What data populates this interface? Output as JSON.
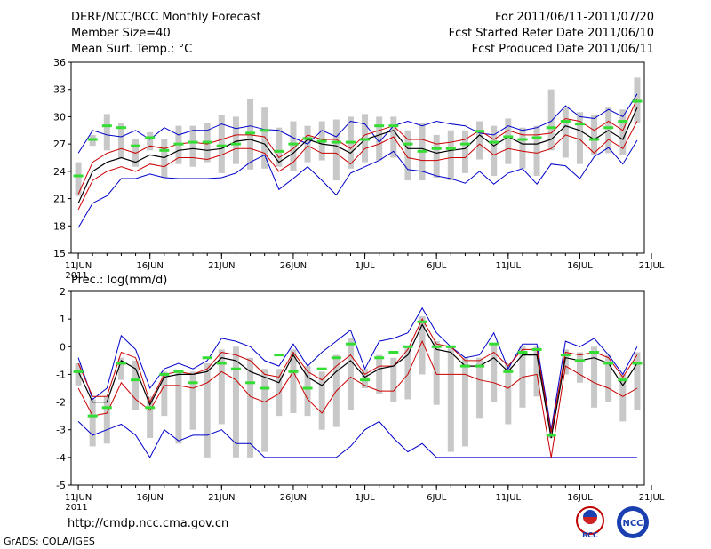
{
  "header": {
    "title": "DERF/NCC/BCC Monthly Forecast",
    "member_size": "Member Size=40",
    "variable1": "Mean Surf. Temp.: °C",
    "period": "For 2011/06/11-2011/07/20",
    "started": "Fcst Started Refer Date 2011/06/10",
    "produced": "Fcst Produced Date 2011/06/11"
  },
  "footer": {
    "url": "http://cmdp.ncc.cma.gov.cn",
    "grads": "GrADS: COLA/IGES",
    "logo1_text": "BCC",
    "logo2_text": "NCC"
  },
  "colors": {
    "max_min": "#0000cc",
    "spread": "#cc0000",
    "mean": "#000000",
    "bar": "#c8c8c8",
    "median": "#33dd33"
  },
  "chart_data": [
    {
      "type": "line",
      "title": "Mean Surf. Temp.: °C",
      "x_tick_labels": [
        "11JUN",
        "16JUN",
        "21JUN",
        "26JUN",
        "1JUL",
        "6JUL",
        "11JUL",
        "16JUL",
        "21JUL"
      ],
      "year_label": "2011",
      "ylim": [
        15,
        36
      ],
      "y_ticks": [
        15,
        18,
        21,
        24,
        27,
        30,
        33,
        36
      ],
      "max": [
        26.0,
        28.5,
        28.0,
        27.8,
        28.5,
        27.5,
        28.8,
        28.0,
        28.5,
        28.5,
        29.2,
        28.7,
        29.0,
        28.6,
        28.5,
        27.7,
        27.0,
        28.5,
        27.8,
        29.5,
        29.2,
        27.2,
        29.0,
        29.5,
        29.0,
        29.5,
        29.2,
        29.0,
        28.2,
        28.0,
        29.0,
        28.5,
        28.8,
        29.5,
        31.2,
        30.0,
        29.8,
        30.8,
        30.0,
        32.5
      ],
      "upper": [
        21.5,
        25.0,
        26.0,
        26.5,
        26.0,
        26.8,
        26.5,
        27.0,
        27.2,
        27.0,
        27.5,
        28.0,
        28.0,
        27.8,
        25.5,
        26.5,
        28.0,
        27.5,
        27.5,
        26.5,
        28.0,
        28.5,
        29.0,
        27.5,
        27.5,
        27.0,
        27.2,
        27.5,
        28.5,
        27.5,
        28.5,
        28.0,
        28.0,
        28.2,
        29.8,
        29.5,
        28.5,
        29.5,
        28.5,
        32.0
      ],
      "mean": [
        20.5,
        24.0,
        25.0,
        25.5,
        25.0,
        25.8,
        25.5,
        26.3,
        26.5,
        26.3,
        26.5,
        27.3,
        27.5,
        27.0,
        25.0,
        26.0,
        27.5,
        27.0,
        26.8,
        26.0,
        27.5,
        28.0,
        28.5,
        26.5,
        26.5,
        26.0,
        26.3,
        26.5,
        28.0,
        26.8,
        27.8,
        27.0,
        27.0,
        27.5,
        29.0,
        28.5,
        27.5,
        28.5,
        27.5,
        31.0
      ],
      "lower": [
        19.8,
        23.0,
        24.0,
        24.5,
        24.0,
        24.8,
        24.5,
        25.5,
        25.5,
        25.3,
        25.8,
        26.5,
        26.5,
        26.0,
        24.0,
        25.0,
        26.8,
        26.0,
        26.0,
        24.8,
        26.5,
        27.0,
        27.8,
        25.5,
        25.2,
        25.2,
        25.5,
        25.5,
        27.0,
        25.8,
        26.5,
        26.2,
        26.0,
        26.5,
        28.0,
        27.5,
        26.0,
        27.5,
        26.5,
        29.5
      ],
      "min": [
        17.8,
        20.5,
        21.3,
        23.2,
        23.2,
        23.7,
        23.3,
        23.2,
        23.2,
        23.2,
        23.3,
        23.8,
        25.0,
        25.8,
        22.0,
        23.2,
        24.5,
        23.0,
        21.4,
        23.8,
        24.5,
        25.2,
        26.2,
        24.2,
        24.0,
        23.5,
        23.2,
        22.7,
        24.0,
        22.6,
        23.8,
        24.3,
        22.6,
        24.8,
        24.6,
        23.2,
        25.6,
        26.6,
        24.8,
        27.4
      ],
      "bar_low": [
        21.3,
        26.8,
        26.3,
        25.5,
        24.5,
        26.3,
        23.3,
        24.8,
        24.5,
        25.0,
        23.8,
        24.8,
        24.2,
        24.3,
        24.5,
        24.0,
        25.0,
        25.2,
        23.0,
        24.3,
        25.0,
        25.2,
        25.5,
        23.0,
        23.0,
        23.3,
        23.0,
        23.8,
        25.3,
        23.5,
        24.8,
        24.3,
        23.5,
        26.3,
        25.5,
        24.8,
        25.8,
        26.0,
        25.8,
        29.3
      ],
      "bar_high": [
        25.0,
        28.0,
        30.3,
        29.3,
        27.5,
        28.3,
        27.5,
        29.0,
        29.0,
        29.3,
        30.2,
        30.0,
        32.0,
        31.0,
        28.8,
        29.5,
        29.0,
        29.5,
        29.7,
        30.0,
        30.3,
        30.0,
        30.0,
        28.5,
        29.3,
        28.0,
        28.5,
        28.5,
        29.5,
        29.0,
        29.8,
        28.8,
        29.0,
        33.0,
        31.0,
        30.5,
        30.2,
        31.0,
        30.8,
        34.3
      ],
      "median": [
        23.5,
        27.5,
        29.0,
        28.8,
        26.8,
        27.7,
        26.3,
        27.0,
        27.2,
        27.2,
        26.8,
        27.0,
        28.2,
        28.5,
        26.2,
        27.0,
        27.6,
        27.3,
        27.2,
        27.2,
        27.5,
        29.0,
        29.0,
        27.0,
        26.2,
        26.5,
        26.5,
        27.0,
        28.4,
        27.2,
        27.8,
        27.5,
        27.7,
        28.8,
        29.5,
        29.2,
        27.5,
        28.8,
        29.5,
        31.7
      ]
    },
    {
      "type": "line",
      "title": "Prec.: log(mm/d)",
      "x_tick_labels": [
        "11JUN",
        "16JUN",
        "21JUN",
        "26JUN",
        "1JUL",
        "6JUL",
        "11JUL",
        "16JUL",
        "21JUL"
      ],
      "year_label": "2011",
      "ylim": [
        -5,
        2
      ],
      "y_ticks": [
        -5,
        -4,
        -3,
        -2,
        -1,
        0,
        1,
        2
      ],
      "max": [
        -0.4,
        -1.9,
        -1.5,
        0.4,
        -0.1,
        -1.5,
        -0.8,
        -0.6,
        -0.8,
        -0.5,
        0.3,
        0.2,
        0.0,
        -0.5,
        -0.7,
        0.1,
        -0.7,
        -0.2,
        0.2,
        0.6,
        -0.8,
        0.2,
        0.3,
        0.5,
        1.4,
        0.5,
        0.0,
        -0.4,
        -0.3,
        0.5,
        -0.8,
        0.1,
        0.1,
        -3.0,
        0.2,
        0.0,
        0.3,
        -0.3,
        -1.0,
        0.0
      ],
      "upper": [
        -0.6,
        -1.8,
        -1.8,
        -0.2,
        -0.4,
        -2.0,
        -1.0,
        -0.9,
        -1.0,
        -0.8,
        -0.2,
        -0.3,
        -0.5,
        -1.0,
        -1.1,
        -0.2,
        -0.9,
        -1.2,
        -0.7,
        -0.3,
        -1.0,
        -0.7,
        -0.7,
        -0.1,
        1.0,
        0.1,
        0.0,
        -0.5,
        -0.5,
        -0.2,
        -0.7,
        -0.1,
        -0.1,
        -3.1,
        -0.2,
        -0.3,
        -0.2,
        -0.4,
        -1.1,
        -0.3
      ],
      "mean": [
        -0.9,
        -2.0,
        -2.0,
        -0.5,
        -0.8,
        -2.1,
        -1.1,
        -1.0,
        -1.0,
        -0.9,
        -0.4,
        -0.5,
        -0.9,
        -1.1,
        -1.3,
        -0.3,
        -1.1,
        -1.4,
        -0.9,
        -0.5,
        -1.1,
        -0.8,
        -0.7,
        -0.3,
        0.8,
        -0.1,
        -0.2,
        -0.7,
        -0.7,
        -0.4,
        -0.9,
        -0.3,
        -0.3,
        -3.3,
        -0.4,
        -0.5,
        -0.4,
        -0.6,
        -1.4,
        -0.6
      ],
      "lower": [
        -1.5,
        -2.5,
        -2.4,
        -1.3,
        -1.9,
        -2.3,
        -1.4,
        -1.4,
        -1.5,
        -1.3,
        -0.9,
        -1.2,
        -1.8,
        -2.0,
        -1.7,
        -0.9,
        -1.9,
        -2.4,
        -1.6,
        -1.1,
        -1.4,
        -1.6,
        -1.6,
        -1.0,
        0.2,
        -1.0,
        -1.0,
        -1.0,
        -1.2,
        -1.3,
        -1.5,
        -1.1,
        -1.0,
        -4.0,
        -0.7,
        -1.0,
        -1.3,
        -1.5,
        -1.8,
        -1.5
      ],
      "min": [
        -2.7,
        -3.2,
        -3.0,
        -2.8,
        -3.2,
        -4.0,
        -3.0,
        -3.4,
        -3.2,
        -3.2,
        -3.0,
        -3.5,
        -3.5,
        -4.0,
        -4.0,
        -4.0,
        -4.0,
        -4.0,
        -4.0,
        -3.6,
        -3.0,
        -2.7,
        -3.3,
        -3.8,
        -3.5,
        -4.0,
        -4.0,
        -4.0,
        -4.0,
        -4.0,
        -4.0,
        -4.0,
        -4.0,
        -4.0,
        -4.0,
        -4.0,
        -4.0,
        -4.0,
        -4.0,
        -4.0
      ],
      "bar_low": [
        -1.4,
        -3.6,
        -3.5,
        -1.2,
        -2.3,
        -3.3,
        -2.5,
        -3.5,
        -3.0,
        -4.0,
        -2.8,
        -4.0,
        -4.0,
        -3.8,
        -2.5,
        -2.4,
        -2.5,
        -3.0,
        -2.9,
        -2.3,
        -1.5,
        -1.7,
        -2.0,
        -1.9,
        -1.0,
        -2.1,
        -3.8,
        -3.6,
        -2.6,
        -2.0,
        -2.8,
        -2.2,
        -1.8,
        -3.3,
        -1.0,
        -1.3,
        -2.2,
        -2.0,
        -2.7,
        -2.3
      ],
      "bar_high": [
        -0.6,
        -1.9,
        -1.8,
        -0.4,
        -0.5,
        -1.8,
        -0.9,
        -0.9,
        -0.9,
        -0.6,
        -0.1,
        0.0,
        -0.4,
        -0.8,
        -0.8,
        -0.1,
        -0.7,
        -0.9,
        -0.3,
        0.3,
        -0.8,
        -0.3,
        -0.4,
        0.0,
        1.1,
        0.2,
        0.0,
        -0.4,
        -0.4,
        0.1,
        -0.6,
        0.0,
        0.0,
        -3.2,
        -0.1,
        -0.2,
        0.0,
        -0.3,
        -1.0,
        -0.2
      ],
      "median": [
        -0.9,
        -2.5,
        -2.2,
        -0.6,
        -1.2,
        -2.2,
        -1.0,
        -0.9,
        -1.3,
        -0.4,
        -0.6,
        -0.8,
        -1.3,
        -1.5,
        -0.3,
        -0.9,
        -1.5,
        -0.8,
        -0.4,
        0.1,
        -1.2,
        -0.4,
        -0.2,
        0.0,
        0.9,
        0.0,
        0.0,
        -0.7,
        -0.7,
        0.1,
        -0.9,
        -0.2,
        -0.1,
        -3.2,
        -0.3,
        -0.5,
        -0.2,
        -0.6,
        -1.2,
        -0.6
      ]
    }
  ]
}
